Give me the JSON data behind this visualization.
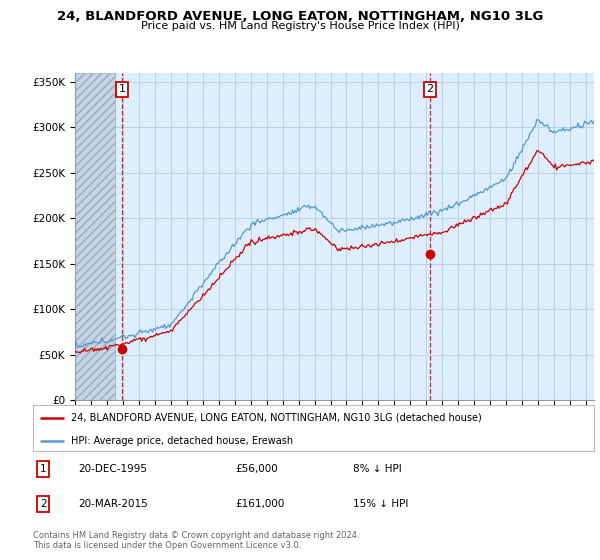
{
  "title": "24, BLANDFORD AVENUE, LONG EATON, NOTTINGHAM, NG10 3LG",
  "subtitle": "Price paid vs. HM Land Registry's House Price Index (HPI)",
  "legend_line1": "24, BLANDFORD AVENUE, LONG EATON, NOTTINGHAM, NG10 3LG (detached house)",
  "legend_line2": "HPI: Average price, detached house, Erewash",
  "annotation1_label": "1",
  "annotation1_date": "20-DEC-1995",
  "annotation1_price": "£56,000",
  "annotation1_hpi": "8% ↓ HPI",
  "annotation2_label": "2",
  "annotation2_date": "20-MAR-2015",
  "annotation2_price": "£161,000",
  "annotation2_hpi": "15% ↓ HPI",
  "footer": "Contains HM Land Registry data © Crown copyright and database right 2024.\nThis data is licensed under the Open Government Licence v3.0.",
  "sale1_year": 1995.97,
  "sale1_price": 56000,
  "sale2_year": 2015.22,
  "sale2_price": 161000,
  "hatch_end_year": 1995.5,
  "ylim_min": 0,
  "ylim_max": 360000,
  "xlim_min": 1993.0,
  "xlim_max": 2025.5,
  "red_color": "#cc0000",
  "blue_color": "#5599cc",
  "bg_color": "#ddeeff",
  "hatch_bg_color": "#c5d5e5",
  "hatch_edge_color": "#99aabb",
  "grid_color": "#c0d0e0"
}
